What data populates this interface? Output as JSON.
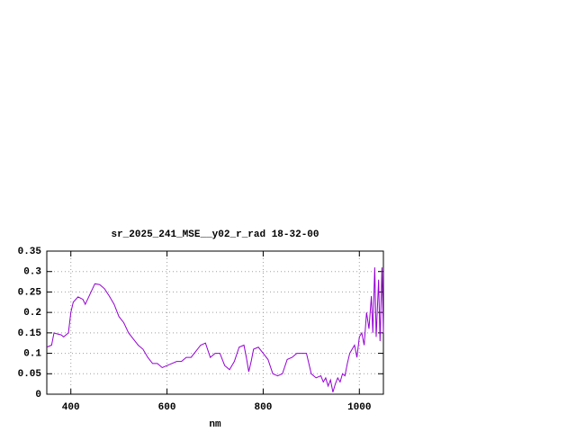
{
  "chart_data": {
    "type": "line",
    "title": "sr_2025_241_MSE__y02_r_rad 18-32-00",
    "xlabel": "nm",
    "xlim": [
      350,
      1050
    ],
    "xticks": [
      400,
      600,
      800,
      1000
    ],
    "ylim": [
      0,
      0.35
    ],
    "yticks": [
      0,
      0.05,
      0.1,
      0.15,
      0.2,
      0.25,
      0.3,
      0.35
    ],
    "grid": true,
    "series": [
      {
        "color": "#9400d3",
        "x": [
          350,
          360,
          365,
          370,
          380,
          385,
          395,
          400,
          405,
          415,
          425,
          430,
          440,
          450,
          460,
          470,
          480,
          490,
          500,
          510,
          520,
          530,
          540,
          550,
          560,
          570,
          580,
          590,
          600,
          610,
          620,
          630,
          640,
          650,
          660,
          670,
          680,
          690,
          700,
          710,
          720,
          730,
          740,
          750,
          760,
          765,
          770,
          775,
          780,
          790,
          800,
          810,
          820,
          830,
          840,
          850,
          860,
          870,
          880,
          890,
          900,
          910,
          920,
          925,
          930,
          935,
          940,
          945,
          950,
          955,
          960,
          965,
          970,
          975,
          980,
          985,
          990,
          995,
          1000,
          1005,
          1010,
          1015,
          1020,
          1025,
          1028,
          1032,
          1035,
          1040,
          1043,
          1047,
          1050
        ],
        "values": [
          0.115,
          0.12,
          0.15,
          0.148,
          0.145,
          0.14,
          0.15,
          0.2,
          0.225,
          0.238,
          0.232,
          0.22,
          0.245,
          0.27,
          0.268,
          0.258,
          0.24,
          0.22,
          0.19,
          0.175,
          0.15,
          0.135,
          0.12,
          0.11,
          0.09,
          0.075,
          0.075,
          0.065,
          0.07,
          0.075,
          0.08,
          0.08,
          0.09,
          0.09,
          0.105,
          0.12,
          0.125,
          0.09,
          0.1,
          0.1,
          0.07,
          0.06,
          0.08,
          0.115,
          0.12,
          0.09,
          0.055,
          0.08,
          0.11,
          0.115,
          0.1,
          0.085,
          0.05,
          0.045,
          0.05,
          0.085,
          0.09,
          0.1,
          0.1,
          0.1,
          0.05,
          0.04,
          0.045,
          0.03,
          0.04,
          0.02,
          0.035,
          0.005,
          0.025,
          0.04,
          0.03,
          0.05,
          0.045,
          0.075,
          0.1,
          0.11,
          0.12,
          0.09,
          0.14,
          0.15,
          0.12,
          0.2,
          0.16,
          0.24,
          0.15,
          0.31,
          0.14,
          0.28,
          0.13,
          0.31,
          0.15
        ]
      }
    ]
  }
}
